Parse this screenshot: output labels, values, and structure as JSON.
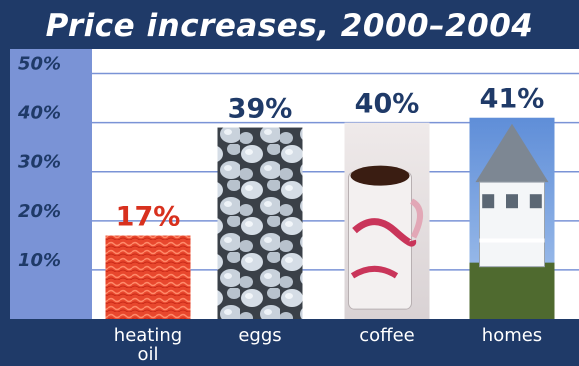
{
  "chart_data": {
    "type": "bar",
    "title": "Price increases, 2000–2004",
    "categories": [
      "heating\noil",
      "eggs",
      "coffee",
      "homes"
    ],
    "values": [
      17,
      39,
      40,
      41
    ],
    "value_labels": [
      "17%",
      "39%",
      "40%",
      "41%"
    ],
    "value_label_colors": [
      "#d8311e",
      "#1f3a68",
      "#1f3a68",
      "#1f3a68"
    ],
    "y_ticks": [
      10,
      20,
      30,
      40,
      50
    ],
    "y_tick_labels": [
      "10%",
      "20%",
      "30%",
      "40%",
      "50%"
    ],
    "ylim": [
      0,
      55
    ],
    "xlabel": "",
    "ylabel": "",
    "grid": true,
    "bar_fills": [
      "heating-oil-photo",
      "eggs-photo",
      "coffee-photo",
      "house-photo"
    ]
  },
  "colors": {
    "frame": "#1f3a68",
    "plot_background": "#ffffff",
    "axis_band": "#7a93d6",
    "gridline": "#7a93d6",
    "tick_label": "#1f3a68",
    "category_label": "#ffffff"
  }
}
